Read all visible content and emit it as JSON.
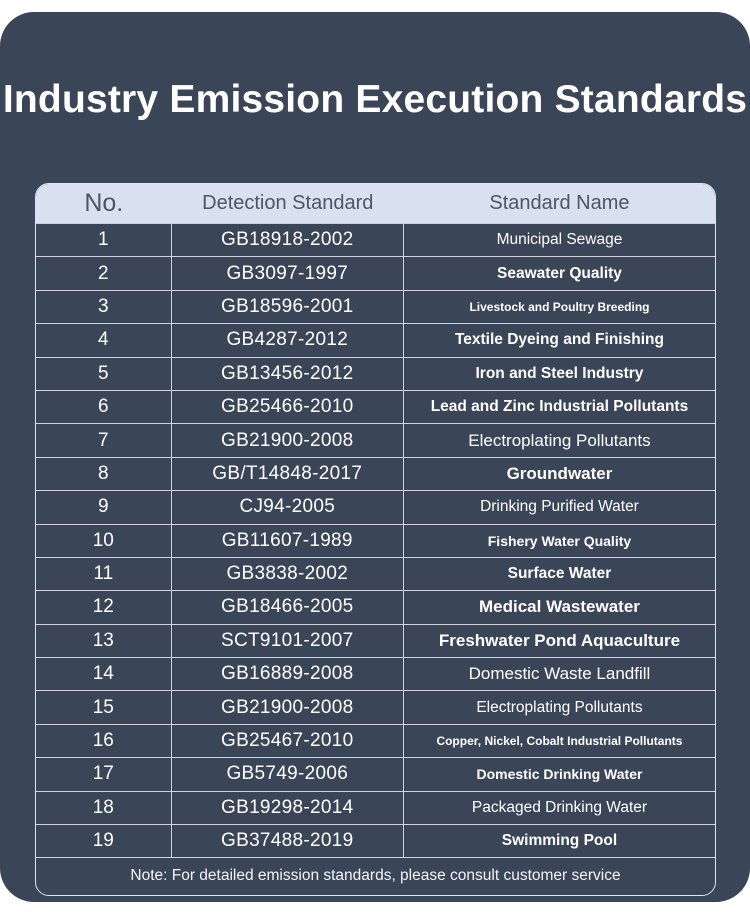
{
  "title": "Industry Emission Execution Standards",
  "colors": {
    "card": "#3b4558",
    "header": "#d9e0f0",
    "text": "#ffffff",
    "grid": "#cfd4de"
  },
  "table": {
    "headers": {
      "no": "No.",
      "detection": "Detection Standard",
      "name": "Standard Name"
    },
    "rows": [
      {
        "no": "1",
        "code": "GB18918-2002",
        "name": "Municipal Sewage",
        "weight": "reg",
        "size": "md"
      },
      {
        "no": "2",
        "code": "GB3097-1997",
        "name": "Seawater Quality",
        "weight": "bold",
        "size": "md"
      },
      {
        "no": "3",
        "code": "GB18596-2001",
        "name": "Livestock and Poultry Breeding",
        "weight": "bold",
        "size": "xs"
      },
      {
        "no": "4",
        "code": "GB4287-2012",
        "name": "Textile Dyeing and Finishing",
        "weight": "bold",
        "size": "md"
      },
      {
        "no": "5",
        "code": "GB13456-2012",
        "name": "Iron and Steel Industry",
        "weight": "bold",
        "size": "md"
      },
      {
        "no": "6",
        "code": "GB25466-2010",
        "name": "Lead and Zinc Industrial Pollutants",
        "weight": "bold",
        "size": "md"
      },
      {
        "no": "7",
        "code": "GB21900-2008",
        "name": "Electroplating Pollutants",
        "weight": "reg",
        "size": "lg"
      },
      {
        "no": "8",
        "code": "GB/T14848-2017",
        "name": "Groundwater",
        "weight": "bold",
        "size": "lg"
      },
      {
        "no": "9",
        "code": "CJ94-2005",
        "name": "Drinking Purified Water",
        "weight": "reg",
        "size": "md"
      },
      {
        "no": "10",
        "code": "GB11607-1989",
        "name": "Fishery Water Quality",
        "weight": "bold",
        "size": "sm"
      },
      {
        "no": "11",
        "code": "GB3838-2002",
        "name": "Surface Water",
        "weight": "bold",
        "size": "md"
      },
      {
        "no": "12",
        "code": "GB18466-2005",
        "name": "Medical Wastewater",
        "weight": "bold",
        "size": "lg"
      },
      {
        "no": "13",
        "code": "SCT9101-2007",
        "name": "Freshwater Pond Aquaculture",
        "weight": "bold",
        "size": "lg"
      },
      {
        "no": "14",
        "code": "GB16889-2008",
        "name": "Domestic Waste Landfill",
        "weight": "reg",
        "size": "lg"
      },
      {
        "no": "15",
        "code": "GB21900-2008",
        "name": "Electroplating Pollutants",
        "weight": "reg",
        "size": "md"
      },
      {
        "no": "16",
        "code": "GB25467-2010",
        "name": "Copper, Nickel, Cobalt Industrial Pollutants",
        "weight": "bold",
        "size": "xs"
      },
      {
        "no": "17",
        "code": "GB5749-2006",
        "name": "Domestic Drinking Water",
        "weight": "bold",
        "size": "sm"
      },
      {
        "no": "18",
        "code": "GB19298-2014",
        "name": "Packaged Drinking Water",
        "weight": "reg",
        "size": "md"
      },
      {
        "no": "19",
        "code": "GB37488-2019",
        "name": "Swimming Pool",
        "weight": "bold",
        "size": "md"
      }
    ],
    "note": "Note: For detailed emission standards, please consult customer service"
  }
}
